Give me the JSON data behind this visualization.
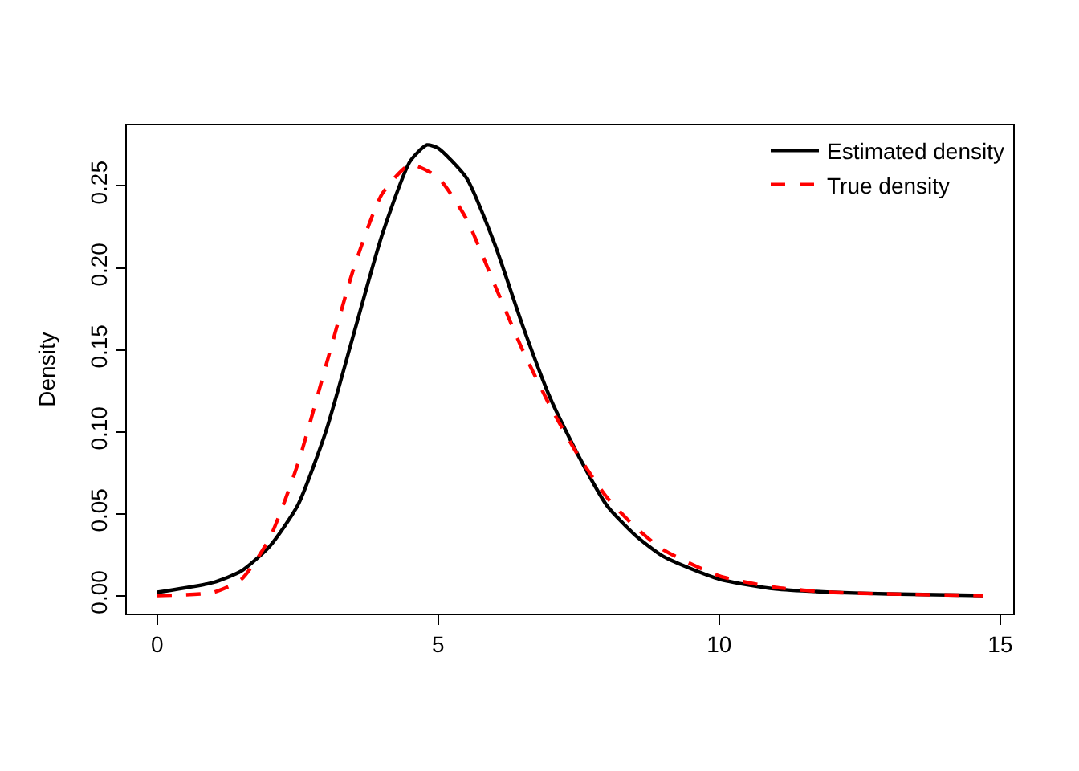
{
  "chart_data": {
    "type": "line",
    "ylabel": "Density",
    "xlim": [
      -0.54,
      15.23
    ],
    "ylim": [
      -0.011,
      0.287
    ],
    "xticks": [
      0,
      5,
      10,
      15
    ],
    "yticks": [
      {
        "value": 0,
        "label": "0.00"
      },
      {
        "value": 0.05,
        "label": "0.05"
      },
      {
        "value": 0.1,
        "label": "0.10"
      },
      {
        "value": 0.15,
        "label": "0.15"
      },
      {
        "value": 0.2,
        "label": "0.20"
      },
      {
        "value": 0.25,
        "label": "0.25"
      }
    ],
    "legend": "top right",
    "marker": "none",
    "series": [
      {
        "name": "Estimated density",
        "color": "#000000",
        "line_style": "solid",
        "x": [
          0,
          1,
          1.5,
          2,
          2.5,
          3,
          3.5,
          4,
          4.5,
          4.8,
          5,
          5.5,
          6,
          6.5,
          7,
          7.5,
          8,
          8.5,
          9,
          10,
          11,
          12,
          13,
          14.7
        ],
        "values": [
          0.002,
          0.008,
          0.015,
          0.03,
          0.055,
          0.1,
          0.16,
          0.22,
          0.265,
          0.275,
          0.273,
          0.255,
          0.215,
          0.165,
          0.12,
          0.085,
          0.055,
          0.037,
          0.024,
          0.01,
          0.004,
          0.002,
          0.001,
          0
        ]
      },
      {
        "name": "True density",
        "color": "#ff0000",
        "line_style": "dashed",
        "x": [
          0,
          1,
          1.5,
          2,
          2.5,
          3,
          3.5,
          4,
          4.5,
          5,
          5.5,
          6,
          6.5,
          7,
          7.5,
          8,
          8.5,
          9,
          10,
          11,
          12,
          13,
          14.7
        ],
        "values": [
          0,
          0.002,
          0.01,
          0.035,
          0.08,
          0.14,
          0.2,
          0.245,
          0.263,
          0.255,
          0.23,
          0.19,
          0.15,
          0.115,
          0.085,
          0.06,
          0.042,
          0.028,
          0.012,
          0.005,
          0.002,
          0.001,
          0
        ]
      }
    ]
  }
}
